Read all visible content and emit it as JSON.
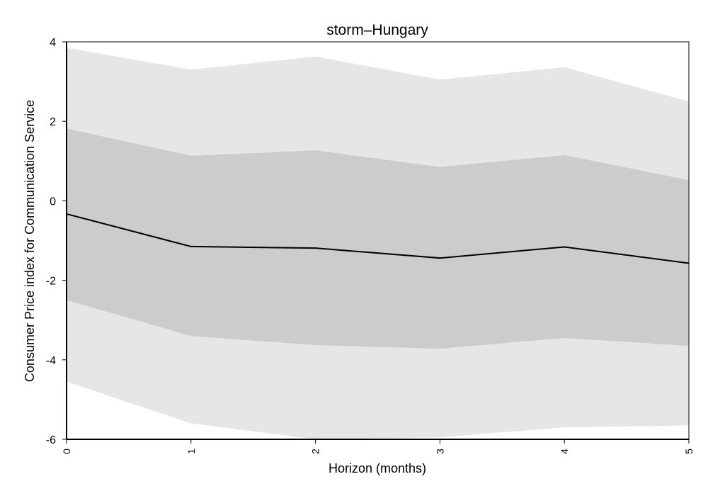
{
  "chart_data": {
    "type": "line",
    "title": "storm–Hungary",
    "xlabel": "Horizon (months)",
    "ylabel": "Consumer Price index for Communication Service",
    "x": [
      0,
      1,
      2,
      3,
      4,
      5
    ],
    "x_tick_labels": [
      "0",
      "1",
      "2",
      "3",
      "4",
      "5"
    ],
    "y_ticks": [
      4,
      2,
      0,
      -2,
      -4,
      -6
    ],
    "y_tick_labels": [
      "4",
      "2",
      "0",
      "-2",
      "-4",
      "-6"
    ],
    "xlim": [
      0,
      5
    ],
    "ylim": [
      -6,
      4
    ],
    "grid": false,
    "legend": "none",
    "series": [
      {
        "values": [
          -0.33,
          -1.15,
          -1.19,
          -1.44,
          -1.16,
          -1.57
        ]
      }
    ],
    "bands": [
      {
        "lower": [
          -4.55,
          -5.6,
          -6.0,
          -5.95,
          -5.7,
          -5.65
        ],
        "upper": [
          3.85,
          3.3,
          3.63,
          3.05,
          3.36,
          2.5
        ]
      },
      {
        "lower": [
          -2.5,
          -3.4,
          -3.63,
          -3.72,
          -3.45,
          -3.65
        ],
        "upper": [
          1.82,
          1.13,
          1.27,
          0.85,
          1.15,
          0.52
        ]
      }
    ],
    "colors": {
      "outer_band": "#e6e6e6",
      "inner_band": "#cccccc",
      "line": "#000000",
      "frame": "#000000"
    }
  }
}
